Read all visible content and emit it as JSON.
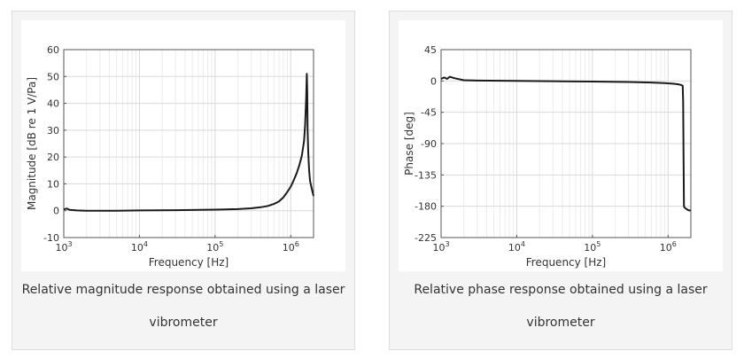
{
  "figures": [
    {
      "caption": "Relative magnitude response obtained using a laser vibrometer"
    },
    {
      "caption": "Relative phase response obtained using a laser vibrometer"
    }
  ],
  "chart_data": [
    {
      "type": "line",
      "xlabel": "Frequency [Hz]",
      "ylabel": "Magnitude [dB re 1 V/Pa]",
      "x_scale": "log",
      "xlim": [
        1000,
        2000000
      ],
      "ylim": [
        -10,
        60
      ],
      "xticks": [
        1000,
        10000,
        100000,
        1000000
      ],
      "xtick_labels": [
        {
          "base": "10",
          "exp": "3"
        },
        {
          "base": "10",
          "exp": "4"
        },
        {
          "base": "10",
          "exp": "5"
        },
        {
          "base": "10",
          "exp": "6"
        }
      ],
      "yticks": [
        -10,
        0,
        10,
        20,
        30,
        40,
        50,
        60
      ],
      "grid": true,
      "color": "#1a1a1a",
      "series": [
        {
          "x": [
            1000,
            1100,
            1200,
            1500,
            2000,
            5000,
            10000,
            30000,
            100000,
            200000,
            300000,
            400000,
            500000,
            600000,
            700000,
            800000,
            900000,
            1000000,
            1100000,
            1200000,
            1300000,
            1400000,
            1500000,
            1550000,
            1600000,
            1630000,
            1650000,
            1670000,
            1700000,
            1750000,
            1800000,
            1900000,
            2000000
          ],
          "y": [
            0.5,
            0.8,
            0.3,
            0.1,
            0,
            0,
            0.1,
            0.2,
            0.4,
            0.6,
            0.9,
            1.3,
            1.8,
            2.5,
            3.5,
            5,
            7,
            9,
            11.5,
            14,
            17,
            20.5,
            26,
            32,
            42,
            51,
            44,
            30,
            22,
            15,
            11,
            8,
            5.5
          ]
        }
      ]
    },
    {
      "type": "line",
      "xlabel": "Frequency [Hz]",
      "ylabel": "Phase [deg]",
      "x_scale": "log",
      "xlim": [
        1000,
        2000000
      ],
      "ylim": [
        -225,
        45
      ],
      "xticks": [
        1000,
        10000,
        100000,
        1000000
      ],
      "xtick_labels": [
        {
          "base": "10",
          "exp": "3"
        },
        {
          "base": "10",
          "exp": "4"
        },
        {
          "base": "10",
          "exp": "5"
        },
        {
          "base": "10",
          "exp": "6"
        }
      ],
      "yticks": [
        -225,
        -180,
        -135,
        -90,
        -45,
        0,
        45
      ],
      "grid": true,
      "color": "#1a1a1a",
      "series": [
        {
          "x": [
            1000,
            1100,
            1200,
            1300,
            1500,
            2000,
            3000,
            10000,
            30000,
            100000,
            300000,
            600000,
            900000,
            1200000,
            1400000,
            1500000,
            1560000,
            1580000,
            1600000,
            1620000,
            1650000,
            1700000,
            1800000,
            1900000,
            2000000
          ],
          "y": [
            3,
            5,
            3,
            6,
            4,
            1,
            0.5,
            0,
            -0.3,
            -0.8,
            -1.5,
            -2.2,
            -3,
            -4,
            -5,
            -6,
            -7,
            -30,
            -100,
            -180,
            -182,
            -183,
            -185,
            -186,
            -186
          ]
        }
      ]
    }
  ]
}
